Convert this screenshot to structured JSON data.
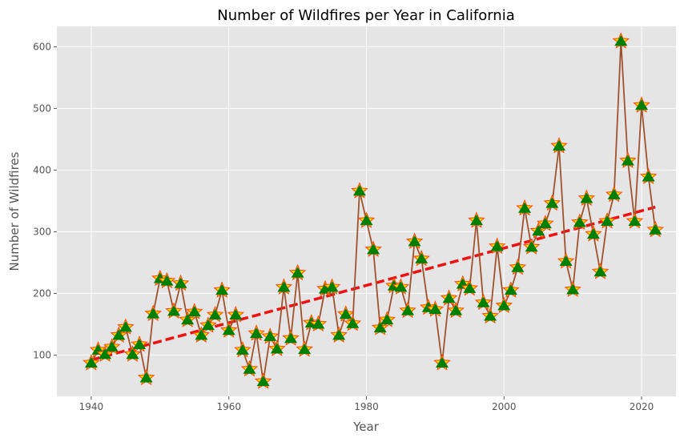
{
  "chart_data": {
    "type": "line",
    "title": "Number of Wildfires per Year in California",
    "xlabel": "Year",
    "ylabel": "Number of Wildfires",
    "xlim": [
      1935,
      2025
    ],
    "ylim": [
      33,
      633
    ],
    "x_ticks": [
      1940,
      1960,
      1980,
      2000,
      2020
    ],
    "y_ticks": [
      100,
      200,
      300,
      400,
      500,
      600
    ],
    "grid": true,
    "legend": "none",
    "colors": {
      "plot_background": "#e5e5e5",
      "grid": "#ffffff",
      "line": "#a0522d",
      "marker_fill": "#008000",
      "marker_outline": "#ff4500",
      "trend": "#ee1111"
    },
    "series": [
      {
        "x": [
          1940,
          1941,
          1942,
          1943,
          1944,
          1945,
          1946,
          1947,
          1948,
          1949,
          1950,
          1951,
          1952,
          1953,
          1954,
          1955,
          1956,
          1957,
          1958,
          1959,
          1960,
          1961,
          1962,
          1963,
          1964,
          1965,
          1966,
          1967,
          1968,
          1969,
          1970,
          1971,
          1972,
          1973,
          1974,
          1975,
          1976,
          1977,
          1978,
          1979,
          1980,
          1981,
          1982,
          1983,
          1984,
          1985,
          1986,
          1987,
          1988,
          1989,
          1990,
          1991,
          1992,
          1993,
          1994,
          1995,
          1996,
          1997,
          1998,
          1999,
          2000,
          2001,
          2002,
          2003,
          2004,
          2005,
          2006,
          2007,
          2008,
          2009,
          2010,
          2011,
          2012,
          2013,
          2014,
          2015,
          2016,
          2017,
          2018,
          2019,
          2020,
          2021,
          2022
        ],
        "values": [
          87,
          108,
          101,
          113,
          132,
          145,
          101,
          117,
          63,
          167,
          224,
          220,
          171,
          216,
          157,
          170,
          132,
          148,
          165,
          205,
          140,
          165,
          108,
          77,
          135,
          57,
          130,
          110,
          210,
          127,
          233,
          109,
          152,
          150,
          207,
          210,
          132,
          166,
          151,
          366,
          318,
          271,
          144,
          157,
          212,
          210,
          172,
          284,
          256,
          177,
          174,
          87,
          192,
          172,
          215,
          208,
          318,
          185,
          163,
          276,
          180,
          205,
          242,
          338,
          275,
          301,
          313,
          346,
          439,
          252,
          206,
          315,
          354,
          296,
          235,
          317,
          360,
          609,
          415,
          317,
          505,
          389,
          303
        ]
      }
    ],
    "trend": {
      "x": [
        1940,
        2022
      ],
      "y": [
        92,
        340
      ]
    }
  }
}
